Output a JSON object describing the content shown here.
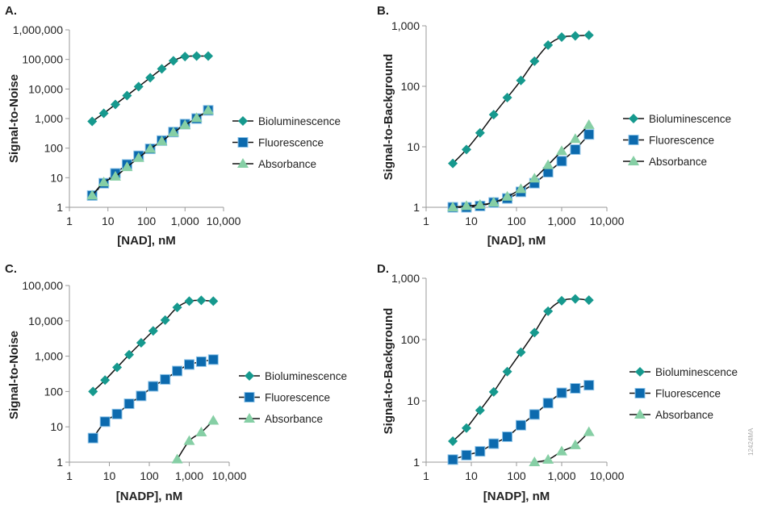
{
  "colors": {
    "Bioluminescence": "#16998e",
    "Fluorescence": "#0c6aae",
    "Absorbance": "#86cfa5",
    "line": "#111111",
    "axis": "#999999"
  },
  "watermark": "12424MA",
  "chart_data": [
    {
      "panel": "A.",
      "type": "line",
      "xscale": "log",
      "yscale": "log",
      "xlabel": "[NAD], nM",
      "ylabel": "Signal-to-Noise",
      "xlim": [
        1,
        10000
      ],
      "ylim": [
        1,
        1000000
      ],
      "xticks": [
        1,
        10,
        100,
        1000,
        10000
      ],
      "xtick_labels": [
        "1",
        "10",
        "100",
        "1,000",
        "10,000"
      ],
      "yticks": [
        1,
        10,
        100,
        1000,
        10000,
        100000,
        1000000
      ],
      "ytick_labels": [
        "1",
        "10",
        "100",
        "1,000",
        "10,000",
        "100,000",
        "1,000,000"
      ],
      "legend": "right",
      "series": [
        {
          "name": "Bioluminescence",
          "marker": "diamond",
          "x": [
            3.9,
            7.8,
            15.6,
            31.3,
            62.5,
            125,
            250,
            500,
            1000,
            2000,
            4000
          ],
          "y": [
            800,
            1500,
            3000,
            6000,
            12000,
            24000,
            48000,
            90000,
            125000,
            130000,
            130000
          ]
        },
        {
          "name": "Fluorescence",
          "marker": "square",
          "x": [
            3.9,
            7.8,
            15.6,
            31.3,
            62.5,
            125,
            250,
            500,
            1000,
            2000,
            4000
          ],
          "y": [
            2.5,
            6.5,
            14,
            28,
            55,
            95,
            180,
            350,
            650,
            1000,
            1900
          ]
        },
        {
          "name": "Absorbance",
          "marker": "triangle",
          "x": [
            3.9,
            7.8,
            15.6,
            31.3,
            62.5,
            125,
            250,
            500,
            1000,
            2000,
            4000
          ],
          "y": [
            2.5,
            7,
            11,
            23,
            47,
            95,
            170,
            340,
            600,
            1050,
            1900
          ]
        }
      ]
    },
    {
      "panel": "B.",
      "type": "line",
      "xscale": "log",
      "yscale": "log",
      "xlabel": "[NAD], nM",
      "ylabel": "Signal-to-Background",
      "xlim": [
        1,
        10000
      ],
      "ylim": [
        1,
        1000
      ],
      "xticks": [
        1,
        10,
        100,
        1000,
        10000
      ],
      "xtick_labels": [
        "1",
        "10",
        "100",
        "1,000",
        "10,000"
      ],
      "yticks": [
        1,
        10,
        100,
        1000
      ],
      "ytick_labels": [
        "1",
        "10",
        "100",
        "1,000"
      ],
      "legend": "right",
      "series": [
        {
          "name": "Bioluminescence",
          "marker": "diamond",
          "x": [
            3.9,
            7.8,
            15.6,
            31.3,
            62.5,
            125,
            250,
            500,
            1000,
            2000,
            4000
          ],
          "y": [
            5.3,
            9,
            17,
            34,
            65,
            125,
            260,
            480,
            650,
            680,
            700
          ]
        },
        {
          "name": "Fluorescence",
          "marker": "square",
          "x": [
            3.9,
            7.8,
            15.6,
            31.3,
            62.5,
            125,
            250,
            500,
            1000,
            2000,
            4000
          ],
          "y": [
            1,
            1,
            1.05,
            1.2,
            1.4,
            1.8,
            2.5,
            3.8,
            5.8,
            9,
            16
          ]
        },
        {
          "name": "Absorbance",
          "marker": "triangle",
          "x": [
            3.9,
            7.8,
            15.6,
            31.3,
            62.5,
            125,
            250,
            500,
            1000,
            2000,
            4000
          ],
          "y": [
            1,
            1.05,
            1.1,
            1.2,
            1.5,
            2,
            3,
            5,
            8.5,
            13.5,
            23
          ]
        }
      ]
    },
    {
      "panel": "C.",
      "type": "line",
      "xscale": "log",
      "yscale": "log",
      "xlabel": "[NADP], nM",
      "ylabel": "Signal-to-Noise",
      "xlim": [
        1,
        10000
      ],
      "ylim": [
        1,
        100000
      ],
      "xticks": [
        1,
        10,
        100,
        1000,
        10000
      ],
      "xtick_labels": [
        "1",
        "10",
        "100",
        "1,000",
        "10,000"
      ],
      "yticks": [
        1,
        10,
        100,
        1000,
        10000,
        100000
      ],
      "ytick_labels": [
        "1",
        "10",
        "100",
        "1,000",
        "10,000",
        "100,000"
      ],
      "legend": "right",
      "series": [
        {
          "name": "Bioluminescence",
          "marker": "diamond",
          "x": [
            3.9,
            7.8,
            15.6,
            31.3,
            62.5,
            125,
            250,
            500,
            1000,
            2000,
            4000
          ],
          "y": [
            100,
            210,
            480,
            1100,
            2400,
            5200,
            10500,
            24000,
            36000,
            38000,
            36000
          ]
        },
        {
          "name": "Fluorescence",
          "marker": "square",
          "x": [
            3.9,
            7.8,
            15.6,
            31.3,
            62.5,
            125,
            250,
            500,
            1000,
            2000,
            4000
          ],
          "y": [
            4.8,
            14,
            23,
            45,
            75,
            140,
            220,
            380,
            580,
            700,
            800
          ]
        },
        {
          "name": "Absorbance",
          "marker": "triangle",
          "x": [
            500,
            1000,
            2000,
            4000
          ],
          "y": [
            1.2,
            4,
            7,
            15
          ]
        }
      ]
    },
    {
      "panel": "D.",
      "type": "line",
      "xscale": "log",
      "yscale": "log",
      "xlabel": "[NADP], nM",
      "ylabel": "Signal-to-Background",
      "xlim": [
        1,
        10000
      ],
      "ylim": [
        1,
        1000
      ],
      "xticks": [
        1,
        10,
        100,
        1000,
        10000
      ],
      "xtick_labels": [
        "1",
        "10",
        "100",
        "1,000",
        "10,000"
      ],
      "yticks": [
        1,
        10,
        100,
        1000
      ],
      "ytick_labels": [
        "1",
        "10",
        "100",
        "1,000"
      ],
      "legend": "right",
      "series": [
        {
          "name": "Bioluminescence",
          "marker": "diamond",
          "x": [
            3.9,
            7.8,
            15.6,
            31.3,
            62.5,
            125,
            250,
            500,
            1000,
            2000,
            4000
          ],
          "y": [
            2.2,
            3.6,
            7,
            14,
            30,
            62,
            130,
            290,
            430,
            460,
            440
          ]
        },
        {
          "name": "Fluorescence",
          "marker": "square",
          "x": [
            3.9,
            7.8,
            15.6,
            31.3,
            62.5,
            125,
            250,
            500,
            1000,
            2000,
            4000
          ],
          "y": [
            1.1,
            1.3,
            1.5,
            2,
            2.6,
            4,
            6,
            9.2,
            13.5,
            16,
            18
          ]
        },
        {
          "name": "Absorbance",
          "marker": "triangle",
          "x": [
            250,
            500,
            1000,
            2000,
            4000
          ],
          "y": [
            1,
            1.1,
            1.5,
            1.9,
            3.1
          ]
        }
      ]
    }
  ]
}
